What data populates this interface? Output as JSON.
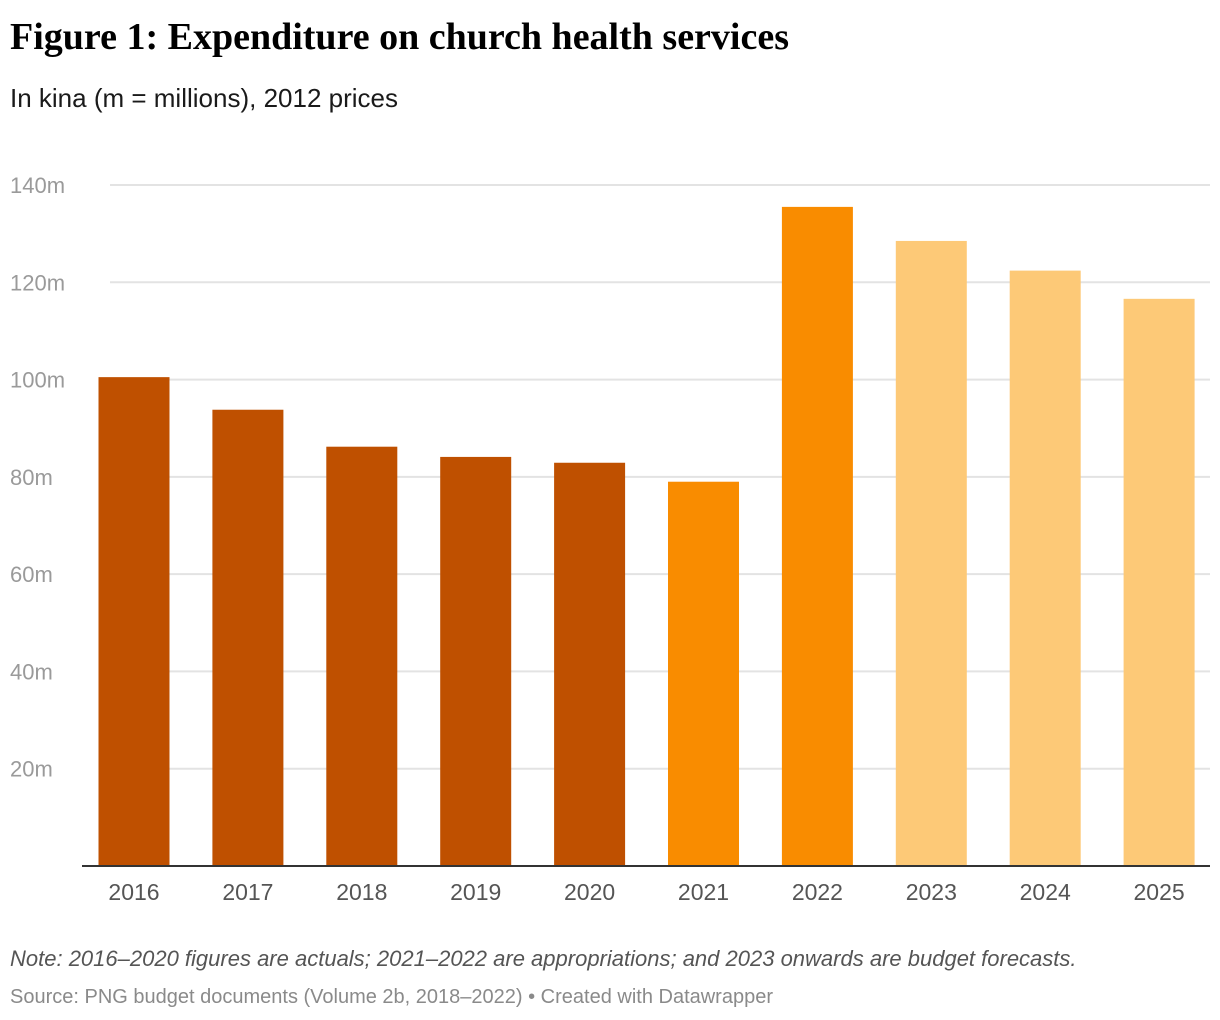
{
  "title": "Figure 1: Expenditure on church health services",
  "subtitle": "In kina (m = millions), 2012 prices",
  "note": "Note: 2016–2020 figures are actuals; 2021–2022 are appropriations; and 2023 onwards are budget forecasts.",
  "source": "Source: PNG budget documents (Volume 2b, 2018–2022) • Created with Datawrapper",
  "colors": {
    "actual": "#bf5000",
    "appropriation": "#f98c00",
    "forecast": "#fdc977",
    "grid": "#e3e3e3",
    "baseline": "#333333"
  },
  "chart_data": {
    "type": "bar",
    "title": "Figure 1: Expenditure on church health services",
    "subtitle": "In kina (m = millions), 2012 prices",
    "xlabel": "",
    "ylabel": "",
    "ylim": [
      0,
      140
    ],
    "grid": true,
    "y_ticks": [
      20,
      40,
      60,
      80,
      100,
      120,
      140
    ],
    "y_tick_labels": [
      "20m",
      "40m",
      "60m",
      "80m",
      "100m",
      "120m",
      "140m"
    ],
    "categories": [
      "2016",
      "2017",
      "2018",
      "2019",
      "2020",
      "2021",
      "2022",
      "2023",
      "2024",
      "2025"
    ],
    "values": [
      100.5,
      93.8,
      86.2,
      84.1,
      82.9,
      79.0,
      135.5,
      128.5,
      122.4,
      116.6
    ],
    "value_type": [
      "actual",
      "actual",
      "actual",
      "actual",
      "actual",
      "appropriation",
      "appropriation",
      "forecast",
      "forecast",
      "forecast"
    ]
  }
}
